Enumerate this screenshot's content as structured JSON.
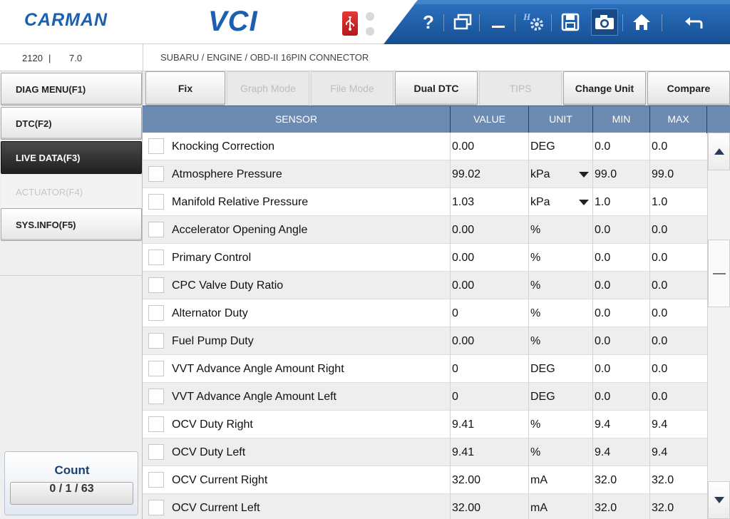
{
  "header": {
    "logo_text": "CARMAN",
    "product_text": "VCI",
    "toolbar_icons": [
      "help-icon",
      "window-icon",
      "minimize-icon",
      "hsetup-gear-icon",
      "save-icon",
      "camera-icon",
      "home-icon",
      "back-icon"
    ],
    "help_label": "?",
    "accent_color": "#1b5fb0",
    "toolbar_color": "#1f5fa8"
  },
  "infobar": {
    "vehicle_id": "2120",
    "separator": "|",
    "version": "7.0",
    "path": "SUBARU / ENGINE / OBD-II 16PIN CONNECTOR"
  },
  "sidebar": {
    "items": [
      {
        "label": "DIAG MENU(F1)",
        "state": "normal"
      },
      {
        "label": "DTC(F2)",
        "state": "normal"
      },
      {
        "label": "LIVE DATA(F3)",
        "state": "active"
      },
      {
        "label": "ACTUATOR(F4)",
        "state": "disabled"
      },
      {
        "label": "SYS.INFO(F5)",
        "state": "normal"
      }
    ],
    "count": {
      "label": "Count",
      "value": "0 / 1 / 63"
    }
  },
  "functions": {
    "fix": "Fix",
    "graph_mode": "Graph Mode",
    "file_mode": "File Mode",
    "dual_dtc": "Dual DTC",
    "tips": "TIPS",
    "change_unit": "Change Unit",
    "compare": "Compare"
  },
  "table": {
    "headers": {
      "sensor": "SENSOR",
      "value": "VALUE",
      "unit": "UNIT",
      "min": "MIN",
      "max": "MAX"
    },
    "rows": [
      {
        "name": "Knocking Correction",
        "value": "0.00",
        "unit": "DEG",
        "min": "0.0",
        "max": "0.0",
        "unit_dropdown": false
      },
      {
        "name": "Atmosphere Pressure",
        "value": "99.02",
        "unit": "kPa",
        "min": "99.0",
        "max": "99.0",
        "unit_dropdown": true
      },
      {
        "name": "Manifold Relative Pressure",
        "value": "1.03",
        "unit": "kPa",
        "min": "1.0",
        "max": "1.0",
        "unit_dropdown": true
      },
      {
        "name": "Accelerator Opening Angle",
        "value": "0.00",
        "unit": "%",
        "min": "0.0",
        "max": "0.0",
        "unit_dropdown": false
      },
      {
        "name": "Primary Control",
        "value": "0.00",
        "unit": "%",
        "min": "0.0",
        "max": "0.0",
        "unit_dropdown": false
      },
      {
        "name": "CPC Valve Duty Ratio",
        "value": "0.00",
        "unit": "%",
        "min": "0.0",
        "max": "0.0",
        "unit_dropdown": false
      },
      {
        "name": "Alternator Duty",
        "value": "0",
        "unit": "%",
        "min": "0.0",
        "max": "0.0",
        "unit_dropdown": false
      },
      {
        "name": "Fuel Pump Duty",
        "value": "0.00",
        "unit": "%",
        "min": "0.0",
        "max": "0.0",
        "unit_dropdown": false
      },
      {
        "name": "VVT Advance Angle Amount Right",
        "value": "0",
        "unit": "DEG",
        "min": "0.0",
        "max": "0.0",
        "unit_dropdown": false
      },
      {
        "name": "VVT Advance Angle Amount Left",
        "value": "0",
        "unit": "DEG",
        "min": "0.0",
        "max": "0.0",
        "unit_dropdown": false
      },
      {
        "name": "OCV Duty Right",
        "value": "9.41",
        "unit": "%",
        "min": "9.4",
        "max": "9.4",
        "unit_dropdown": false
      },
      {
        "name": "OCV Duty Left",
        "value": "9.41",
        "unit": "%",
        "min": "9.4",
        "max": "9.4",
        "unit_dropdown": false
      },
      {
        "name": "OCV Current Right",
        "value": "32.00",
        "unit": "mA",
        "min": "32.0",
        "max": "32.0",
        "unit_dropdown": false
      },
      {
        "name": "OCV Current Left",
        "value": "32.00",
        "unit": "mA",
        "min": "32.0",
        "max": "32.0",
        "unit_dropdown": false
      }
    ]
  }
}
